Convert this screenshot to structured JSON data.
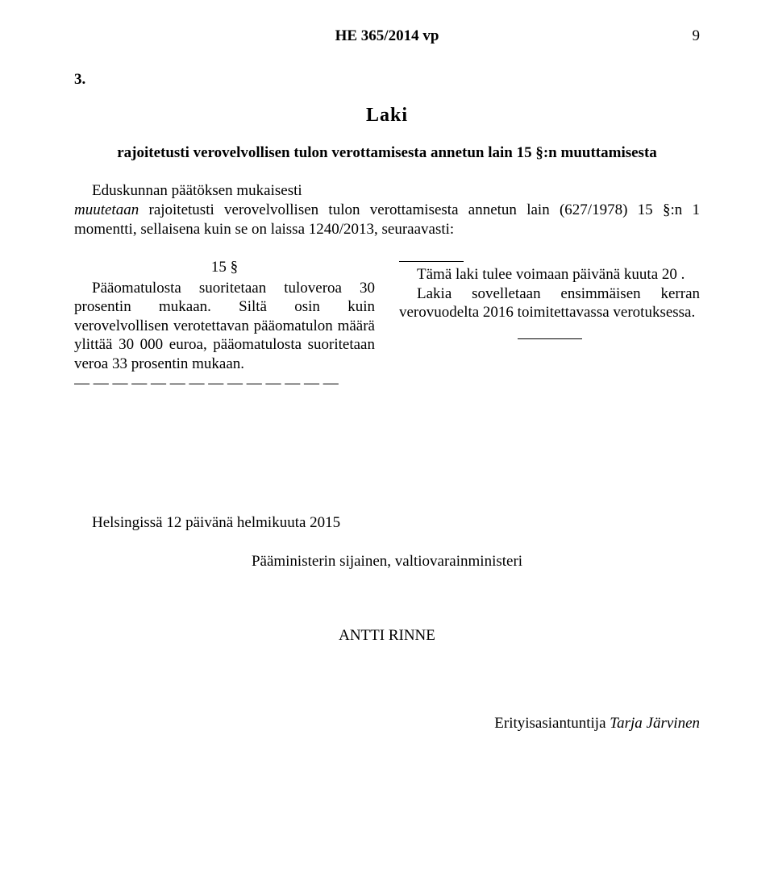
{
  "header": {
    "doc_id": "HE 365/2014 vp",
    "page_number": "9"
  },
  "section_number": "3.",
  "law_heading": "Laki",
  "law_subtitle": "rajoitetusti verovelvollisen tulon verottamisesta annetun lain 15 §:n muuttamisesta",
  "preamble": {
    "line1": "Eduskunnan päätöksen mukaisesti",
    "line2_pre": "muutetaan",
    "line2_rest": " rajoitetusti verovelvollisen tulon verottamisesta annetun lain (627/1978) 15 §:n 1 momentti, sellaisena kuin se on laissa 1240/2013, seuraavasti:"
  },
  "left_col": {
    "sect": "15 §",
    "para": "Pääomatulosta suoritetaan tuloveroa 30 prosentin mukaan. Siltä osin kuin verovelvollisen verotettavan pääomatulon määrä ylittää 30 000 euroa, pääomatulosta suoritetaan veroa 33 prosentin mukaan.",
    "dashes": "— — — — — — — — — — — — — —"
  },
  "right_col": {
    "p1": "Tämä laki tulee voimaan   päivänä     kuuta 20  .",
    "p2": "Lakia sovelletaan ensimmäisen kerran verovuodelta 2016 toimitettavassa verotuksessa."
  },
  "closing": {
    "helsinki": "Helsingissä 12 päivänä helmikuuta 2015",
    "pm_line": "Pääministerin sijainen, valtiovarainministeri",
    "minister": "ANTTI RINNE",
    "advisor_title": "Erityisasiantuntija ",
    "advisor_name": "Tarja Järvinen"
  },
  "style": {
    "background": "#ffffff",
    "text_color": "#000000"
  }
}
